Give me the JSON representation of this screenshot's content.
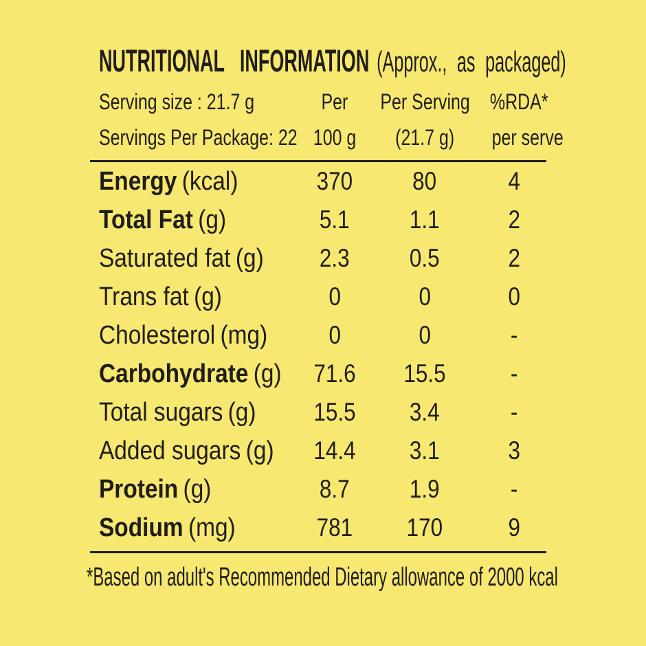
{
  "colors": {
    "background": "#F6E870",
    "ink": "#201D1A"
  },
  "title": {
    "main": "NUTRITIONAL INFORMATION",
    "note": "(Approx., as packaged)"
  },
  "header": {
    "serving_size": "Serving size : 21.7 g",
    "servings_per_package": "Servings Per Package: 22",
    "col_per100": {
      "line1": "Per",
      "line2": "100 g"
    },
    "col_serving": {
      "line1": "Per Serving",
      "line2": "(21.7 g)"
    },
    "col_rda": {
      "line1": "%RDA*",
      "line2": "per serve"
    }
  },
  "table": {
    "rows": [
      {
        "name": "Energy",
        "unit": "(kcal)",
        "per_100g": "370",
        "per_serving": "80",
        "rda": "4"
      },
      {
        "name": "Total Fat",
        "unit": "(g)",
        "per_100g": "5.1",
        "per_serving": "1.1",
        "rda": "2"
      },
      {
        "name": "Saturated fat",
        "unit": "(g)",
        "per_100g": "2.3",
        "per_serving": "0.5",
        "rda": "2"
      },
      {
        "name": "Trans fat",
        "unit": "(g)",
        "per_100g": "0",
        "per_serving": "0",
        "rda": "0"
      },
      {
        "name": "Cholesterol",
        "unit": "(mg)",
        "per_100g": "0",
        "per_serving": "0",
        "rda": "-"
      },
      {
        "name": "Carbohydrate",
        "unit": "(g)",
        "per_100g": "71.6",
        "per_serving": "15.5",
        "rda": "-"
      },
      {
        "name": "Total sugars",
        "unit": "(g)",
        "per_100g": "15.5",
        "per_serving": "3.4",
        "rda": "-"
      },
      {
        "name": "Added sugars",
        "unit": "(g)",
        "per_100g": "14.4",
        "per_serving": "3.1",
        "rda": "3"
      },
      {
        "name": "Protein",
        "unit": "(g)",
        "per_100g": "8.7",
        "per_serving": "1.9",
        "rda": "-"
      },
      {
        "name": "Sodium",
        "unit": "(mg)",
        "per_100g": "781",
        "per_serving": "170",
        "rda": "9"
      }
    ]
  },
  "footnote": "*Based on adult's Recommended Dietary allowance of 2000 kcal"
}
